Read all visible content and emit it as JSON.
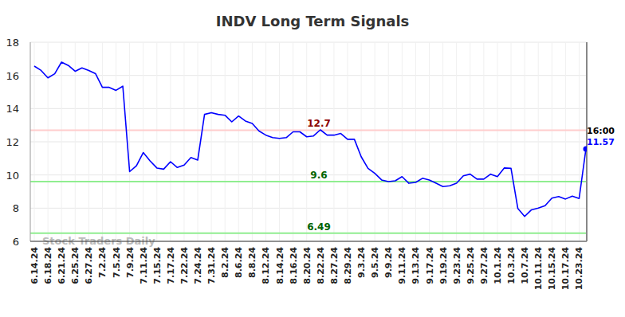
{
  "chart_data": {
    "type": "line",
    "title": "INDV Long Term Signals",
    "categories": [
      "6.14.24",
      null,
      "6.18.24",
      null,
      "6.21.24",
      null,
      "6.25.24",
      null,
      "6.27.24",
      null,
      "7.2.24",
      null,
      "7.5.24",
      null,
      "7.9.24",
      null,
      "7.11.24",
      null,
      "7.15.24",
      null,
      "7.17.24",
      null,
      "7.22.24",
      null,
      "7.24.24",
      null,
      "7.31.24",
      null,
      "8.2.24",
      null,
      "8.6.24",
      null,
      "8.8.24",
      null,
      "8.12.24",
      null,
      "8.14.24",
      null,
      "8.16.24",
      null,
      "8.20.24",
      null,
      "8.22.24",
      null,
      "8.27.24",
      null,
      "8.29.24",
      null,
      "9.3.24",
      null,
      "9.5.24",
      null,
      "9.9.24",
      null,
      "9.11.24",
      null,
      "9.13.24",
      null,
      "9.17.24",
      null,
      "9.19.24",
      null,
      "9.23.24",
      null,
      "9.25.24",
      null,
      "9.27.24",
      null,
      "10.1.24",
      null,
      "10.3.24",
      null,
      "10.7.24",
      null,
      "10.11.24",
      null,
      "10.15.24",
      null,
      "10.17.24",
      null,
      "10.23.24",
      null
    ],
    "series": [
      {
        "name": "INDV",
        "color": "#0000ff",
        "values": [
          16.56,
          16.3,
          15.85,
          16.1,
          16.8,
          16.6,
          16.25,
          16.45,
          16.3,
          16.1,
          15.28,
          15.28,
          15.1,
          15.35,
          10.2,
          10.55,
          11.35,
          10.85,
          10.42,
          10.35,
          10.8,
          10.45,
          10.6,
          11.05,
          10.9,
          13.65,
          13.75,
          13.65,
          13.6,
          13.2,
          13.55,
          13.25,
          13.1,
          12.65,
          12.4,
          12.25,
          12.2,
          12.25,
          12.6,
          12.6,
          12.3,
          12.35,
          12.72,
          12.4,
          12.4,
          12.5,
          12.15,
          12.15,
          11.1,
          10.4,
          10.1,
          9.7,
          9.6,
          9.65,
          9.9,
          9.5,
          9.55,
          9.8,
          9.7,
          9.5,
          9.3,
          9.35,
          9.5,
          9.95,
          10.05,
          9.75,
          9.75,
          10.05,
          9.9,
          10.42,
          10.4,
          7.98,
          7.5,
          7.9,
          8.0,
          8.15,
          8.6,
          8.7,
          8.55,
          8.72,
          8.58,
          11.57
        ]
      }
    ],
    "ylim": [
      6,
      18
    ],
    "yticks": [
      6,
      8,
      10,
      12,
      14,
      16,
      18
    ],
    "grid": true,
    "reference_lines": [
      {
        "value": 12.7,
        "label": "12.7",
        "color": "#ffcccc",
        "label_color": "#8b0000"
      },
      {
        "value": 9.6,
        "label": "9.6",
        "color": "#90ee90",
        "label_color": "#006400"
      },
      {
        "value": 6.49,
        "label": "6.49",
        "color": "#90ee90",
        "label_color": "#006400"
      }
    ],
    "annotations": [
      "16:00",
      "11.57"
    ],
    "watermark": "Stock Traders Daily"
  }
}
